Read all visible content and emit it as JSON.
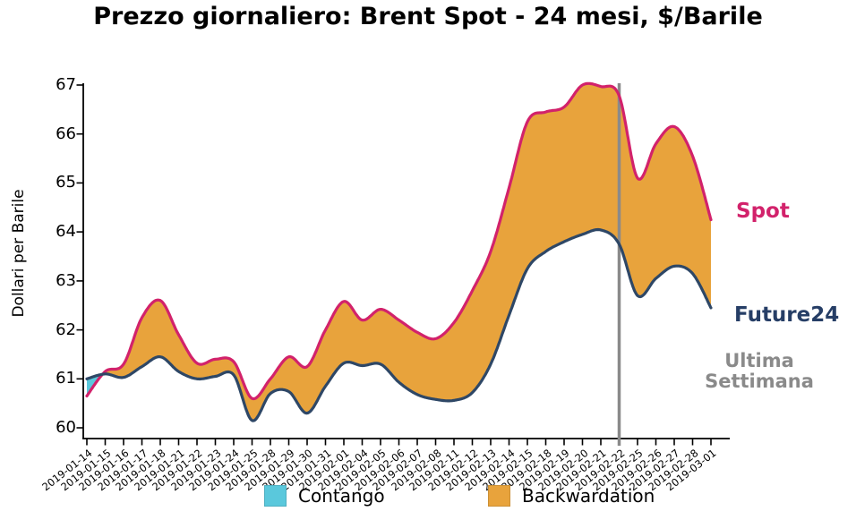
{
  "title": "Prezzo giornaliero: Brent Spot - 24 mesi, $/Barile",
  "ylabel": "Dollari per Barile",
  "annotations": {
    "spot_label": "Spot",
    "future_label": "Future24",
    "vline_label": "Ultima Settimana"
  },
  "legend": [
    {
      "label": "Contango",
      "color": "#5AC8DC"
    },
    {
      "label": "Backwardation",
      "color": "#E8A33C"
    }
  ],
  "chart_data": {
    "type": "area",
    "title": "Prezzo giornaliero: Brent Spot - 24 mesi, $/Barile",
    "xlabel": "",
    "ylabel": "Dollari per Barile",
    "ylim": [
      59.8,
      67.05
    ],
    "yticks": [
      60,
      61,
      62,
      63,
      64,
      65,
      66,
      67
    ],
    "grid": false,
    "legend_position": "bottom",
    "x": [
      "2019-01-14",
      "2019-01-15",
      "2019-01-16",
      "2019-01-17",
      "2019-01-18",
      "2019-01-21",
      "2019-01-22",
      "2019-01-23",
      "2019-01-24",
      "2019-01-25",
      "2019-01-28",
      "2019-01-29",
      "2019-01-30",
      "2019-01-31",
      "2019-02-01",
      "2019-02-04",
      "2019-02-05",
      "2019-02-06",
      "2019-02-07",
      "2019-02-08",
      "2019-02-11",
      "2019-02-12",
      "2019-02-13",
      "2019-02-14",
      "2019-02-15",
      "2019-02-18",
      "2019-02-19",
      "2019-02-20",
      "2019-02-21",
      "2019-02-22",
      "2019-02-25",
      "2019-02-26",
      "2019-02-27",
      "2019-02-28",
      "2019-03-01"
    ],
    "series": [
      {
        "name": "Spot",
        "values": [
          60.65,
          61.15,
          61.3,
          62.25,
          62.6,
          61.9,
          61.32,
          61.4,
          61.35,
          60.6,
          61.0,
          61.45,
          61.25,
          62.0,
          62.58,
          62.2,
          62.42,
          62.2,
          61.95,
          61.82,
          62.15,
          62.8,
          63.6,
          64.9,
          66.25,
          66.45,
          66.55,
          67.0,
          66.97,
          66.78,
          65.1,
          65.8,
          66.15,
          65.55,
          64.25
        ]
      },
      {
        "name": "Future24",
        "values": [
          61.0,
          61.1,
          61.03,
          61.25,
          61.45,
          61.15,
          61.0,
          61.05,
          61.08,
          60.15,
          60.7,
          60.74,
          60.3,
          60.85,
          61.32,
          61.27,
          61.3,
          60.93,
          60.68,
          60.58,
          60.56,
          60.72,
          61.3,
          62.3,
          63.25,
          63.6,
          63.8,
          63.95,
          64.04,
          63.75,
          62.7,
          63.05,
          63.3,
          63.15,
          62.45
        ]
      }
    ],
    "fill_regions": [
      {
        "name": "Contango",
        "condition": "future > spot",
        "color": "#5AC8DC"
      },
      {
        "name": "Backwardation",
        "condition": "spot > future",
        "color": "#E8A33C"
      }
    ],
    "vline_index": 29,
    "vline_x": "2019-02-22",
    "colors": {
      "spot": "#D2226B",
      "future": "#2E4766",
      "future_label": "#263E66",
      "contango": "#5AC8DC",
      "backwardation": "#E8A33C",
      "vline": "#8A8A8A",
      "vline_label": "#8A8A8A",
      "axis": "#000000"
    }
  }
}
